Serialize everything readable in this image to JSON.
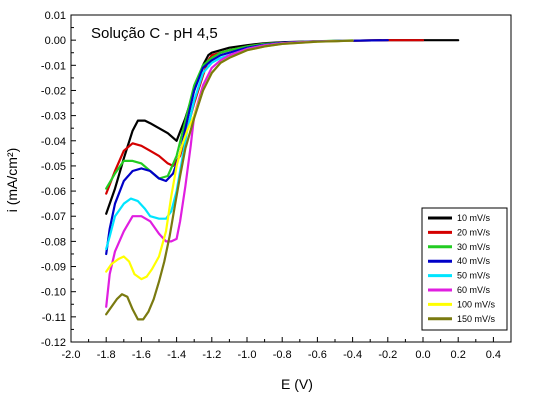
{
  "chart_data": {
    "type": "line",
    "title": "",
    "annotation": "Solução C - pH 4,5",
    "xlabel": "E (V)",
    "ylabel": "i (mA/cm²)",
    "xlim": [
      -2.0,
      0.5
    ],
    "ylim": [
      -0.12,
      0.01
    ],
    "xticks": [
      -2.0,
      -1.8,
      -1.6,
      -1.4,
      -1.2,
      -1.0,
      -0.8,
      -0.6,
      -0.4,
      -0.2,
      0.0,
      0.2,
      0.4
    ],
    "xtick_labels": [
      "-2.0",
      "-1.8",
      "-1.6",
      "-1.4",
      "-1.2",
      "-1.0",
      "-0.8",
      "-0.6",
      "-0.4",
      "-0.2",
      "0.0",
      "0.2",
      "0.4"
    ],
    "yticks": [
      0.01,
      0.0,
      -0.01,
      -0.02,
      -0.03,
      -0.04,
      -0.05,
      -0.06,
      -0.07,
      -0.08,
      -0.09,
      -0.1,
      -0.11,
      -0.12
    ],
    "ytick_labels": [
      "0.01",
      "0.00",
      "-0.01",
      "-0.02",
      "-0.03",
      "-0.04",
      "-0.05",
      "-0.06",
      "-0.07",
      "-0.08",
      "-0.09",
      "-0.10",
      "-0.11",
      "-0.12"
    ],
    "grid": false,
    "legend_position": "bottom-right",
    "series": [
      {
        "name": "10 mV/s",
        "color": "#000000",
        "x": [
          -1.8,
          -1.75,
          -1.7,
          -1.65,
          -1.62,
          -1.58,
          -1.55,
          -1.5,
          -1.45,
          -1.4,
          -1.35,
          -1.3,
          -1.25,
          -1.22,
          -1.2,
          -1.15,
          -1.1,
          -1.0,
          -0.9,
          -0.8,
          -0.6,
          -0.4,
          -0.2,
          0.0,
          0.2
        ],
        "y": [
          -0.069,
          -0.059,
          -0.047,
          -0.036,
          -0.032,
          -0.032,
          -0.033,
          -0.035,
          -0.037,
          -0.04,
          -0.031,
          -0.02,
          -0.01,
          -0.006,
          -0.005,
          -0.004,
          -0.003,
          -0.002,
          -0.0012,
          -0.0008,
          -0.0004,
          -0.0002,
          0.0,
          0.0,
          0.0
        ]
      },
      {
        "name": "20 mV/s",
        "color": "#d40000",
        "x": [
          -1.8,
          -1.75,
          -1.7,
          -1.65,
          -1.6,
          -1.55,
          -1.5,
          -1.45,
          -1.42,
          -1.38,
          -1.35,
          -1.3,
          -1.25,
          -1.22,
          -1.2,
          -1.15,
          -1.1,
          -1.0,
          -0.9,
          -0.8,
          -0.6,
          -0.4,
          -0.2,
          0.0
        ],
        "y": [
          -0.061,
          -0.052,
          -0.044,
          -0.041,
          -0.042,
          -0.044,
          -0.046,
          -0.049,
          -0.05,
          -0.046,
          -0.038,
          -0.025,
          -0.014,
          -0.008,
          -0.006,
          -0.005,
          -0.004,
          -0.0025,
          -0.0015,
          -0.001,
          -0.0005,
          -0.0002,
          0.0,
          0.0
        ]
      },
      {
        "name": "30 mV/s",
        "color": "#22cc22",
        "x": [
          -1.8,
          -1.75,
          -1.7,
          -1.65,
          -1.6,
          -1.55,
          -1.5,
          -1.45,
          -1.4,
          -1.35,
          -1.3,
          -1.25,
          -1.2,
          -1.15,
          -1.1,
          -1.0,
          -0.9,
          -0.8,
          -0.6,
          -0.4
        ],
        "y": [
          -0.059,
          -0.053,
          -0.048,
          -0.048,
          -0.049,
          -0.052,
          -0.055,
          -0.054,
          -0.046,
          -0.032,
          -0.018,
          -0.01,
          -0.007,
          -0.005,
          -0.004,
          -0.0025,
          -0.0015,
          -0.001,
          -0.0004,
          -0.0001
        ]
      },
      {
        "name": "40 mV/s",
        "color": "#0000c8",
        "x": [
          -1.8,
          -1.78,
          -1.75,
          -1.7,
          -1.65,
          -1.6,
          -1.55,
          -1.5,
          -1.46,
          -1.42,
          -1.38,
          -1.35,
          -1.3,
          -1.25,
          -1.2,
          -1.15,
          -1.1,
          -1.0,
          -0.9,
          -0.8,
          -0.6,
          -0.4,
          -0.2
        ],
        "y": [
          -0.085,
          -0.075,
          -0.065,
          -0.056,
          -0.052,
          -0.051,
          -0.052,
          -0.055,
          -0.056,
          -0.053,
          -0.045,
          -0.035,
          -0.02,
          -0.011,
          -0.008,
          -0.006,
          -0.005,
          -0.003,
          -0.0018,
          -0.001,
          -0.0005,
          -0.0002,
          0.0
        ]
      },
      {
        "name": "50 mV/s",
        "color": "#00e5ff",
        "x": [
          -1.8,
          -1.78,
          -1.75,
          -1.7,
          -1.66,
          -1.62,
          -1.58,
          -1.55,
          -1.5,
          -1.46,
          -1.43,
          -1.4,
          -1.37,
          -1.34,
          -1.3,
          -1.25,
          -1.2,
          -1.15,
          -1.1,
          -1.0,
          -0.9,
          -0.8,
          -0.6,
          -0.4
        ],
        "y": [
          -0.083,
          -0.078,
          -0.07,
          -0.065,
          -0.063,
          -0.064,
          -0.067,
          -0.07,
          -0.071,
          -0.071,
          -0.068,
          -0.06,
          -0.048,
          -0.036,
          -0.024,
          -0.013,
          -0.009,
          -0.007,
          -0.006,
          -0.0035,
          -0.002,
          -0.0012,
          -0.0005,
          -0.0002
        ]
      },
      {
        "name": "60 mV/s",
        "color": "#e01ee0",
        "x": [
          -1.8,
          -1.78,
          -1.75,
          -1.7,
          -1.65,
          -1.6,
          -1.55,
          -1.5,
          -1.46,
          -1.43,
          -1.4,
          -1.38,
          -1.35,
          -1.32,
          -1.3,
          -1.25,
          -1.2,
          -1.15,
          -1.1,
          -1.0,
          -0.9,
          -0.8,
          -0.6,
          -0.4
        ],
        "y": [
          -0.106,
          -0.093,
          -0.084,
          -0.076,
          -0.07,
          -0.07,
          -0.072,
          -0.077,
          -0.08,
          -0.08,
          -0.079,
          -0.072,
          -0.058,
          -0.042,
          -0.03,
          -0.018,
          -0.011,
          -0.008,
          -0.006,
          -0.0035,
          -0.002,
          -0.0012,
          -0.0005,
          -0.0002
        ]
      },
      {
        "name": "100 mV/s",
        "color": "#ffff00",
        "x": [
          -1.8,
          -1.77,
          -1.73,
          -1.7,
          -1.67,
          -1.64,
          -1.6,
          -1.57,
          -1.54,
          -1.5,
          -1.46,
          -1.43,
          -1.4,
          -1.37,
          -1.34,
          -1.3,
          -1.25,
          -1.2,
          -1.15,
          -1.1,
          -1.0,
          -0.9,
          -0.8,
          -0.6,
          -0.4
        ],
        "y": [
          -0.092,
          -0.089,
          -0.087,
          -0.086,
          -0.088,
          -0.093,
          -0.095,
          -0.094,
          -0.091,
          -0.086,
          -0.076,
          -0.062,
          -0.05,
          -0.042,
          -0.036,
          -0.03,
          -0.02,
          -0.013,
          -0.009,
          -0.007,
          -0.004,
          -0.0025,
          -0.0015,
          -0.0006,
          -0.0002
        ]
      },
      {
        "name": "150 mV/s",
        "color": "#7a7a10",
        "x": [
          -1.8,
          -1.77,
          -1.74,
          -1.71,
          -1.68,
          -1.65,
          -1.62,
          -1.59,
          -1.56,
          -1.53,
          -1.5,
          -1.47,
          -1.44,
          -1.41,
          -1.38,
          -1.35,
          -1.3,
          -1.25,
          -1.2,
          -1.15,
          -1.1,
          -1.0,
          -0.9,
          -0.8,
          -0.6,
          -0.4
        ],
        "y": [
          -0.109,
          -0.106,
          -0.103,
          -0.101,
          -0.102,
          -0.107,
          -0.111,
          -0.111,
          -0.108,
          -0.103,
          -0.096,
          -0.088,
          -0.078,
          -0.066,
          -0.054,
          -0.043,
          -0.031,
          -0.02,
          -0.013,
          -0.009,
          -0.007,
          -0.004,
          -0.0025,
          -0.0015,
          -0.0006,
          -0.0002
        ]
      }
    ]
  }
}
